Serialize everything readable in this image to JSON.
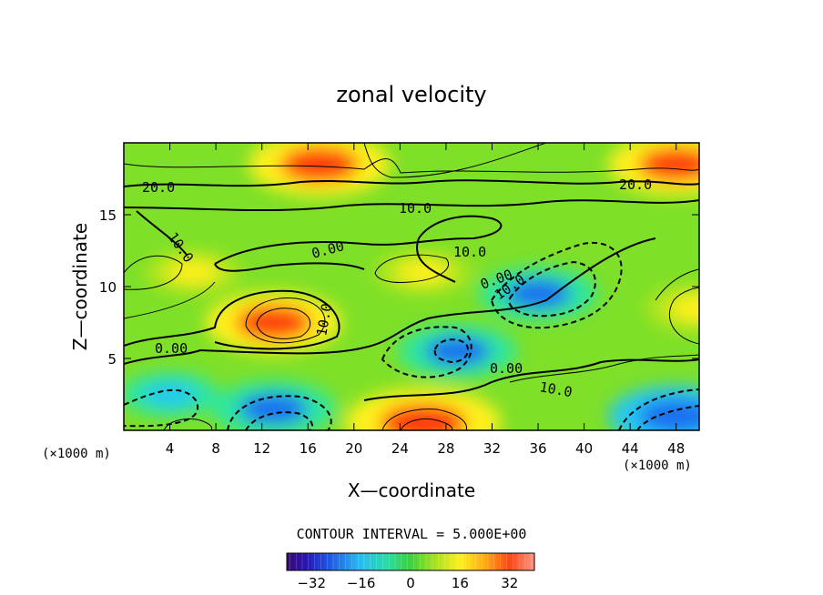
{
  "chart_data": {
    "type": "heatmap",
    "title": "zonal velocity",
    "xlabel": "X—coordinate",
    "ylabel": "Z—coordinate",
    "x_unit": "(×1000 m)",
    "z_unit": "(×1000 m)",
    "xlim": [
      0,
      50
    ],
    "ylim": [
      0,
      20
    ],
    "x_ticks": [
      4,
      8,
      12,
      16,
      20,
      24,
      28,
      32,
      36,
      40,
      44,
      48
    ],
    "y_ticks": [
      5,
      10,
      15
    ],
    "contour_interval_text": "CONTOUR INTERVAL = 5.000E+00",
    "contour_labels": [
      "20.0",
      "20.0",
      "10.0",
      "10.0",
      "10.0",
      "10.0",
      "10.0",
      "10.0",
      "0.00",
      "0.00",
      "0.00",
      "0.00"
    ],
    "colorbar": {
      "range": [
        -40,
        40
      ],
      "ticks": [
        -32,
        -16,
        0,
        16,
        32
      ]
    },
    "features": [
      {
        "x": 17,
        "z": 18.5,
        "value": 30
      },
      {
        "x": 48,
        "z": 18.5,
        "value": 28
      },
      {
        "x": 13,
        "z": 7.5,
        "value": 28
      },
      {
        "x": 26,
        "z": 0.5,
        "value": 35
      },
      {
        "x": 36,
        "z": 9.5,
        "value": -22
      },
      {
        "x": 29,
        "z": 5.5,
        "value": -22
      },
      {
        "x": 13,
        "z": 1.5,
        "value": -24
      },
      {
        "x": 48,
        "z": 1.0,
        "value": -28
      },
      {
        "x": 4,
        "z": 2.5,
        "value": -15
      },
      {
        "x": 50,
        "z": 8.5,
        "value": 18
      },
      {
        "x": 26,
        "z": 11,
        "value": 14
      },
      {
        "x": 6,
        "z": 11,
        "value": 14
      }
    ],
    "colormap": [
      "#3a0a6e",
      "#1a1acc",
      "#1e6ef0",
      "#28c8f0",
      "#2ee6a0",
      "#3cd23c",
      "#b4e61e",
      "#fff01e",
      "#ffa014",
      "#ff3c0a",
      "#e61e1e"
    ]
  }
}
